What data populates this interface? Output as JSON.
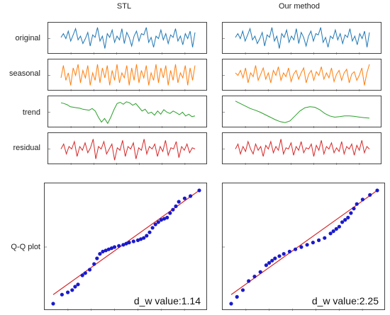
{
  "chart_data": {
    "type": "line",
    "columns": [
      "STL",
      "Our method"
    ],
    "row_labels": [
      "original",
      "seasonal",
      "trend",
      "residual",
      "Q-Q plot"
    ],
    "series_colors": {
      "original": "#1f77b4",
      "seasonal": "#ff7f0e",
      "trend": "#2ca02c",
      "residual": "#d62728",
      "qq_points": "#1a1acc",
      "qq_line": "#d62728"
    },
    "panels": {
      "STL": {
        "original": [
          0.55,
          0.7,
          0.5,
          0.8,
          0.4,
          0.65,
          0.9,
          0.45,
          0.6,
          0.3,
          0.5,
          0.75,
          0.2,
          0.65,
          0.55,
          0.95,
          0.4,
          0.6,
          0.1,
          0.7,
          0.55,
          0.85,
          0.35,
          0.6,
          0.45,
          0.9,
          0.3,
          0.75,
          0.55,
          0.2,
          0.6,
          0.8,
          0.4,
          0.7,
          0.65,
          0.95,
          0.35,
          0.55,
          0.15,
          0.6,
          0.5,
          0.85,
          0.45,
          0.7,
          0.3,
          0.65,
          0.55,
          0.9,
          0.4,
          0.6,
          0.25,
          0.7,
          0.5,
          0.8,
          0.15,
          0.75
        ],
        "seasonal": [
          0.4,
          0.9,
          0.3,
          0.6,
          0.1,
          0.8,
          0.5,
          0.95,
          0.2,
          0.7,
          0.4,
          0.9,
          0.1,
          0.6,
          0.3,
          0.95,
          0.2,
          0.8,
          0.4,
          0.9,
          0.1,
          0.7,
          0.3,
          0.95,
          0.2,
          0.6,
          0.4,
          0.9,
          0.1,
          0.8,
          0.3,
          0.95,
          0.2,
          0.7,
          0.4,
          0.9,
          0.1,
          0.6,
          0.3,
          0.95,
          0.2,
          0.8,
          0.4,
          0.9,
          0.1,
          0.7,
          0.3,
          0.95,
          0.2,
          0.6,
          0.4,
          0.9,
          0.1,
          0.8,
          0.3,
          0.9
        ],
        "trend": [
          0.88,
          0.85,
          0.8,
          0.72,
          0.7,
          0.68,
          0.66,
          0.62,
          0.6,
          0.58,
          0.65,
          0.55,
          0.3,
          0.1,
          0.25,
          0.05,
          0.3,
          0.6,
          0.85,
          0.9,
          0.82,
          0.92,
          0.88,
          0.78,
          0.85,
          0.7,
          0.55,
          0.62,
          0.45,
          0.5,
          0.38,
          0.55,
          0.42,
          0.6,
          0.5,
          0.45,
          0.55,
          0.48,
          0.4,
          0.5,
          0.35,
          0.42,
          0.32,
          0.35
        ],
        "residual": [
          0.5,
          0.7,
          0.3,
          0.6,
          0.5,
          0.8,
          0.2,
          0.6,
          0.45,
          0.75,
          0.35,
          0.55,
          0.9,
          0.1,
          0.6,
          0.5,
          0.8,
          0.3,
          0.5,
          0.7,
          0.05,
          0.55,
          0.45,
          0.85,
          0.2,
          0.6,
          0.5,
          0.75,
          0.1,
          0.55,
          0.45,
          0.9,
          0.3,
          0.6,
          0.5,
          0.7,
          0.2,
          0.6,
          0.4,
          0.85,
          0.25,
          0.55,
          0.5,
          0.8,
          0.15,
          0.6,
          0.45,
          0.7,
          0.35,
          0.55,
          0.5
        ],
        "qq_points": [
          [
            0.0,
            0.0
          ],
          [
            0.06,
            0.08
          ],
          [
            0.1,
            0.1
          ],
          [
            0.13,
            0.12
          ],
          [
            0.15,
            0.15
          ],
          [
            0.17,
            0.17
          ],
          [
            0.2,
            0.25
          ],
          [
            0.22,
            0.27
          ],
          [
            0.25,
            0.3
          ],
          [
            0.28,
            0.35
          ],
          [
            0.3,
            0.4
          ],
          [
            0.32,
            0.44
          ],
          [
            0.34,
            0.46
          ],
          [
            0.36,
            0.47
          ],
          [
            0.38,
            0.48
          ],
          [
            0.4,
            0.49
          ],
          [
            0.42,
            0.5
          ],
          [
            0.45,
            0.51
          ],
          [
            0.48,
            0.52
          ],
          [
            0.5,
            0.53
          ],
          [
            0.52,
            0.54
          ],
          [
            0.55,
            0.55
          ],
          [
            0.58,
            0.56
          ],
          [
            0.6,
            0.57
          ],
          [
            0.62,
            0.58
          ],
          [
            0.64,
            0.6
          ],
          [
            0.66,
            0.63
          ],
          [
            0.68,
            0.67
          ],
          [
            0.7,
            0.7
          ],
          [
            0.72,
            0.72
          ],
          [
            0.74,
            0.74
          ],
          [
            0.76,
            0.75
          ],
          [
            0.78,
            0.76
          ],
          [
            0.8,
            0.8
          ],
          [
            0.82,
            0.83
          ],
          [
            0.84,
            0.86
          ],
          [
            0.86,
            0.9
          ],
          [
            0.9,
            0.93
          ],
          [
            0.94,
            0.95
          ],
          [
            1.0,
            1.0
          ]
        ],
        "dw_label": "d_w value:1.14"
      },
      "Our method": {
        "original": [
          0.55,
          0.7,
          0.5,
          0.8,
          0.4,
          0.65,
          0.9,
          0.45,
          0.6,
          0.3,
          0.5,
          0.75,
          0.2,
          0.65,
          0.55,
          0.95,
          0.4,
          0.6,
          0.1,
          0.7,
          0.55,
          0.85,
          0.35,
          0.6,
          0.45,
          0.9,
          0.3,
          0.75,
          0.55,
          0.2,
          0.6,
          0.8,
          0.4,
          0.7,
          0.65,
          0.95,
          0.35,
          0.55,
          0.15,
          0.6,
          0.5,
          0.85,
          0.45,
          0.7,
          0.3,
          0.65,
          0.55,
          0.9,
          0.4,
          0.6,
          0.25,
          0.7,
          0.5,
          0.8,
          0.15,
          0.75
        ],
        "seasonal": [
          0.6,
          0.5,
          0.7,
          0.4,
          0.8,
          0.2,
          0.6,
          0.45,
          0.9,
          0.3,
          0.55,
          0.8,
          0.35,
          0.6,
          0.2,
          0.7,
          0.5,
          0.85,
          0.3,
          0.6,
          0.45,
          0.8,
          0.25,
          0.55,
          0.7,
          0.35,
          0.6,
          0.8,
          0.2,
          0.55,
          0.7,
          0.3,
          0.65,
          0.5,
          0.85,
          0.35,
          0.6,
          0.4,
          0.8,
          0.25,
          0.55,
          0.7,
          0.3,
          0.6,
          0.75,
          0.2,
          0.55,
          0.65,
          0.3,
          0.5,
          0.8,
          0.1,
          0.6,
          0.95
        ],
        "trend": [
          0.95,
          0.85,
          0.75,
          0.65,
          0.58,
          0.5,
          0.4,
          0.3,
          0.2,
          0.12,
          0.08,
          0.15,
          0.35,
          0.55,
          0.68,
          0.72,
          0.7,
          0.6,
          0.45,
          0.35,
          0.3,
          0.32,
          0.35,
          0.35,
          0.33,
          0.3,
          0.28,
          0.26
        ],
        "residual": [
          0.5,
          0.7,
          0.3,
          0.6,
          0.4,
          0.8,
          0.5,
          0.3,
          0.7,
          0.45,
          0.6,
          0.2,
          0.65,
          0.5,
          0.8,
          0.35,
          0.6,
          0.45,
          0.9,
          0.3,
          0.55,
          0.5,
          0.75,
          0.25,
          0.6,
          0.45,
          0.8,
          0.35,
          0.55,
          0.5,
          0.7,
          0.2,
          0.65,
          0.45,
          0.85,
          0.3,
          0.6,
          0.5,
          0.75,
          0.35,
          0.55,
          0.4,
          0.8,
          0.3,
          0.6,
          0.5,
          0.7,
          0.25,
          0.65,
          0.45,
          0.85,
          0.35,
          0.6,
          0.5
        ],
        "qq_points": [
          [
            0.0,
            0.0
          ],
          [
            0.04,
            0.06
          ],
          [
            0.08,
            0.12
          ],
          [
            0.12,
            0.2
          ],
          [
            0.16,
            0.24
          ],
          [
            0.2,
            0.28
          ],
          [
            0.24,
            0.34
          ],
          [
            0.26,
            0.36
          ],
          [
            0.28,
            0.38
          ],
          [
            0.3,
            0.4
          ],
          [
            0.33,
            0.42
          ],
          [
            0.36,
            0.44
          ],
          [
            0.4,
            0.46
          ],
          [
            0.44,
            0.48
          ],
          [
            0.48,
            0.5
          ],
          [
            0.52,
            0.52
          ],
          [
            0.56,
            0.54
          ],
          [
            0.6,
            0.56
          ],
          [
            0.64,
            0.58
          ],
          [
            0.68,
            0.62
          ],
          [
            0.7,
            0.64
          ],
          [
            0.72,
            0.66
          ],
          [
            0.74,
            0.68
          ],
          [
            0.76,
            0.72
          ],
          [
            0.78,
            0.74
          ],
          [
            0.8,
            0.76
          ],
          [
            0.82,
            0.8
          ],
          [
            0.84,
            0.84
          ],
          [
            0.86,
            0.88
          ],
          [
            0.9,
            0.92
          ],
          [
            0.95,
            0.96
          ],
          [
            1.0,
            1.0
          ]
        ],
        "dw_label": "d_w value:2.25"
      }
    }
  }
}
